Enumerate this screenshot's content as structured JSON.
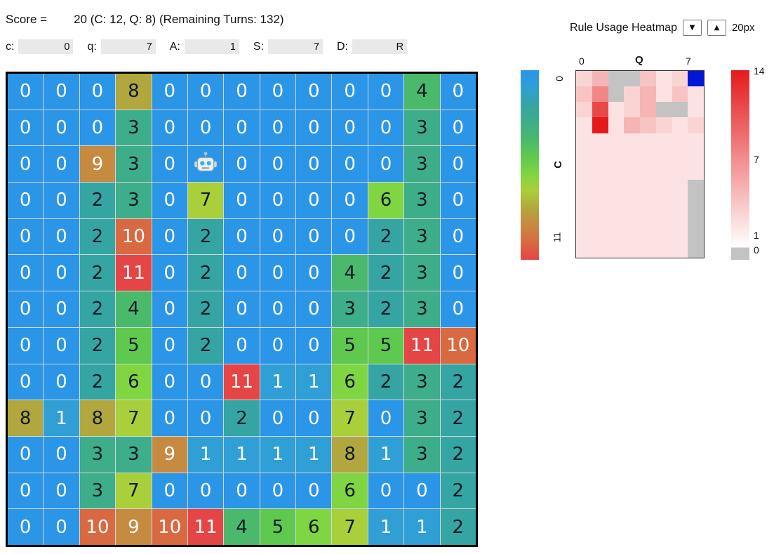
{
  "header": {
    "score_label": "Score =",
    "score_value": "20 (C: 12, Q: 8) (Remaining Turns: 132)"
  },
  "inputs": [
    {
      "label": "c:",
      "value": "0"
    },
    {
      "label": "q:",
      "value": "7"
    },
    {
      "label": "A:",
      "value": "1"
    },
    {
      "label": "S:",
      "value": "7"
    },
    {
      "label": "D:",
      "value": "R"
    }
  ],
  "grid": {
    "rows": 13,
    "cols": 13,
    "agent": {
      "row": 2,
      "col": 5,
      "icon": "robot"
    },
    "values": [
      [
        0,
        0,
        0,
        8,
        0,
        0,
        0,
        0,
        0,
        0,
        0,
        4,
        0
      ],
      [
        0,
        0,
        0,
        3,
        0,
        0,
        0,
        0,
        0,
        0,
        0,
        3,
        0
      ],
      [
        0,
        0,
        9,
        3,
        0,
        0,
        0,
        0,
        0,
        0,
        0,
        3,
        0
      ],
      [
        0,
        0,
        2,
        3,
        0,
        7,
        0,
        0,
        0,
        0,
        6,
        3,
        0
      ],
      [
        0,
        0,
        2,
        10,
        0,
        2,
        0,
        0,
        0,
        0,
        2,
        3,
        0
      ],
      [
        0,
        0,
        2,
        11,
        0,
        2,
        0,
        0,
        0,
        4,
        2,
        3,
        0
      ],
      [
        0,
        0,
        2,
        4,
        0,
        2,
        0,
        0,
        0,
        3,
        2,
        3,
        0
      ],
      [
        0,
        0,
        2,
        5,
        0,
        2,
        0,
        0,
        0,
        5,
        5,
        11,
        10
      ],
      [
        0,
        0,
        2,
        6,
        0,
        0,
        11,
        1,
        1,
        6,
        2,
        3,
        2
      ],
      [
        8,
        1,
        8,
        7,
        0,
        0,
        2,
        0,
        0,
        7,
        0,
        3,
        2
      ],
      [
        0,
        0,
        3,
        3,
        9,
        1,
        1,
        1,
        1,
        8,
        1,
        3,
        2
      ],
      [
        0,
        0,
        3,
        7,
        0,
        0,
        0,
        0,
        0,
        6,
        0,
        0,
        2
      ],
      [
        0,
        0,
        10,
        9,
        10,
        11,
        4,
        5,
        6,
        7,
        1,
        1,
        2
      ]
    ],
    "palette": [
      {
        "bg": "#2b95e8",
        "fg": "#ffffff"
      },
      {
        "bg": "#2f9fd6",
        "fg": "#ffffff"
      },
      {
        "bg": "#35a5a3",
        "fg": "#0e1b24"
      },
      {
        "bg": "#3ead89",
        "fg": "#0e1b24"
      },
      {
        "bg": "#4bb96b",
        "fg": "#0e1b24"
      },
      {
        "bg": "#5fc84f",
        "fg": "#0e1b24"
      },
      {
        "bg": "#7fd542",
        "fg": "#0e1b24"
      },
      {
        "bg": "#a9cf3a",
        "fg": "#0e1b24"
      },
      {
        "bg": "#b2a73e",
        "fg": "#0e1b24"
      },
      {
        "bg": "#c68a40",
        "fg": "#ffffff"
      },
      {
        "bg": "#d96941",
        "fg": "#ffffff"
      },
      {
        "bg": "#e54545",
        "fg": "#ffffff"
      }
    ]
  },
  "heatmap_panel": {
    "title": "Rule Usage Heatmap",
    "down_button": "▼",
    "up_button": "▲",
    "size_label": "20px",
    "x_axis": {
      "label": "Q",
      "min": "0",
      "max": "7"
    },
    "y_axis": {
      "label": "C",
      "min": "0",
      "max": "11"
    },
    "right_colorbar_ticks": [
      "14",
      "7",
      "1",
      "0"
    ],
    "heat_color": "#e41a1c",
    "zero_color": "#c3c3c3",
    "selected_color": "#0016d8",
    "max_value": 14,
    "selected": {
      "row": 0,
      "col": 7
    },
    "values": [
      [
        2,
        4,
        0,
        0,
        3,
        1,
        2,
        0
      ],
      [
        3,
        7,
        0,
        2,
        4,
        1,
        3,
        1
      ],
      [
        2,
        11,
        1,
        2,
        4,
        0,
        0,
        1
      ],
      [
        1,
        14,
        1,
        4,
        3,
        2,
        1,
        2
      ],
      [
        1,
        1,
        1,
        1,
        1,
        1,
        1,
        1
      ],
      [
        1,
        1,
        1,
        1,
        1,
        1,
        1,
        1
      ],
      [
        1,
        1,
        1,
        1,
        1,
        1,
        1,
        1
      ],
      [
        1,
        1,
        1,
        1,
        1,
        1,
        1,
        0
      ],
      [
        1,
        1,
        1,
        1,
        1,
        1,
        1,
        0
      ],
      [
        1,
        1,
        1,
        1,
        1,
        1,
        1,
        0
      ],
      [
        1,
        1,
        1,
        1,
        1,
        1,
        1,
        0
      ],
      [
        1,
        1,
        1,
        1,
        1,
        1,
        1,
        0
      ]
    ]
  }
}
